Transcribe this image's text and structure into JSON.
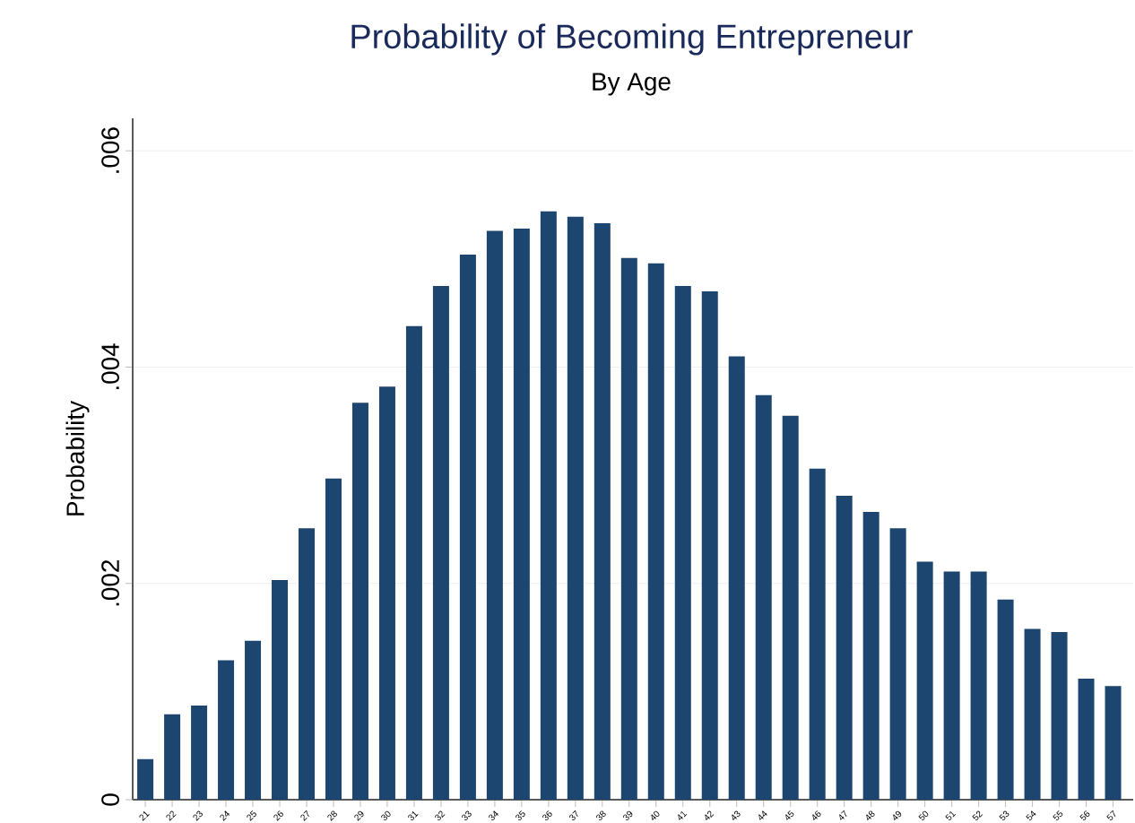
{
  "chart_data": {
    "type": "bar",
    "title": "Probability of Becoming Entrepreneur",
    "subtitle": "By Age",
    "ylabel": "Probability",
    "categories": [
      "21",
      "22",
      "23",
      "24",
      "25",
      "26",
      "27",
      "28",
      "29",
      "30",
      "31",
      "32",
      "33",
      "34",
      "35",
      "36",
      "37",
      "38",
      "39",
      "40",
      "41",
      "42",
      "43",
      "44",
      "45",
      "46",
      "47",
      "48",
      "49",
      "50",
      "51",
      "52",
      "53",
      "54",
      "55",
      "56",
      "57"
    ],
    "values": [
      0.000375,
      0.00079,
      0.00087,
      0.00129,
      0.00147,
      0.00203,
      0.00251,
      0.00297,
      0.00367,
      0.00382,
      0.00438,
      0.00475,
      0.00504,
      0.00526,
      0.00528,
      0.00544,
      0.00539,
      0.00533,
      0.00501,
      0.00496,
      0.00475,
      0.0047,
      0.0041,
      0.00374,
      0.00355,
      0.00306,
      0.00281,
      0.00266,
      0.00251,
      0.0022,
      0.00211,
      0.00211,
      0.00185,
      0.00158,
      0.00155,
      0.00112,
      0.00105
    ],
    "color": "#1c4670",
    "ylim": [
      0,
      0.0063
    ],
    "yticks": [
      0,
      {
        "value": 0.002,
        "label": ".002"
      },
      {
        "value": 0.004,
        "label": ".004"
      },
      {
        "value": 0.006,
        "label": ".006"
      }
    ],
    "grid": "y"
  }
}
